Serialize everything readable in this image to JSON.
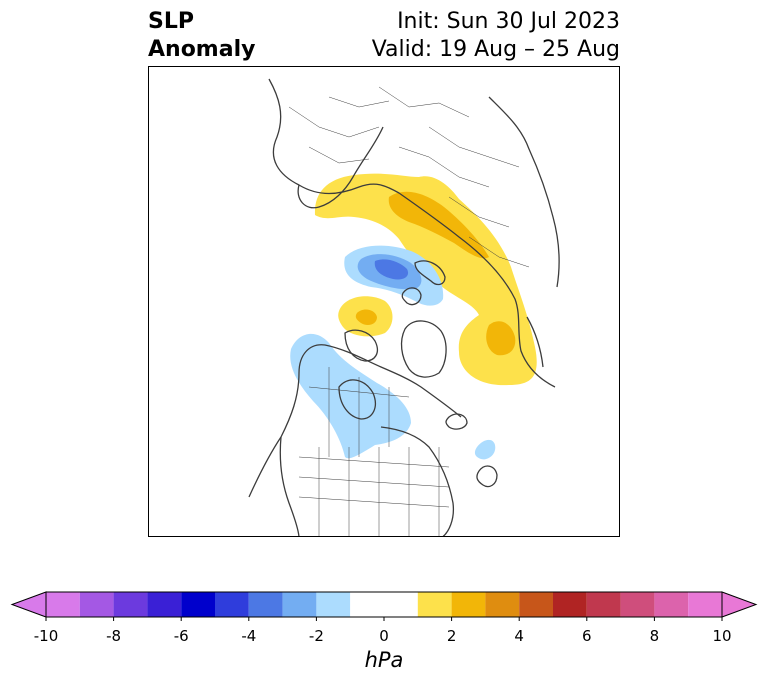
{
  "title": {
    "variable_line1": "SLP",
    "variable_line2": "Anomaly",
    "init": "Init: Sun 30 Jul 2023",
    "valid": "Valid: 19 Aug – 25 Aug"
  },
  "colors": {
    "coast": "#3c3c3c",
    "positive_1": "#fde14b",
    "positive_2": "#f2b608",
    "negative_1": "#acdcfe",
    "negative_2": "#73adf2",
    "negative_3": "#4c78e4"
  },
  "colorbar": {
    "unit": "hPa",
    "ticks": [
      "-10",
      "-8",
      "-6",
      "-4",
      "-2",
      "0",
      "2",
      "4",
      "6",
      "8",
      "10"
    ],
    "bins": [
      {
        "from": -10,
        "to": -9,
        "color": "#d87aea"
      },
      {
        "from": -9,
        "to": -8,
        "color": "#a458e4"
      },
      {
        "from": -8,
        "to": -7,
        "color": "#6c3ade"
      },
      {
        "from": -7,
        "to": -6,
        "color": "#3a20d6"
      },
      {
        "from": -6,
        "to": -5,
        "color": "#0000cc"
      },
      {
        "from": -5,
        "to": -4,
        "color": "#2f3ddc"
      },
      {
        "from": -4,
        "to": -3,
        "color": "#4c78e4"
      },
      {
        "from": -3,
        "to": -2,
        "color": "#73adf2"
      },
      {
        "from": -2,
        "to": -1,
        "color": "#acdcfe"
      },
      {
        "from": -1,
        "to": 1,
        "color": "#ffffff"
      },
      {
        "from": 1,
        "to": 2,
        "color": "#fde14b"
      },
      {
        "from": 2,
        "to": 3,
        "color": "#f2b608"
      },
      {
        "from": 3,
        "to": 4,
        "color": "#df8d10"
      },
      {
        "from": 4,
        "to": 5,
        "color": "#c7561a"
      },
      {
        "from": 5,
        "to": 6,
        "color": "#b02423"
      },
      {
        "from": 6,
        "to": 7,
        "color": "#c0384e"
      },
      {
        "from": 7,
        "to": 8,
        "color": "#cf4e7c"
      },
      {
        "from": 8,
        "to": 9,
        "color": "#dc63ac"
      },
      {
        "from": 9,
        "to": 10,
        "color": "#e878d6"
      }
    ],
    "extend_low_color": "#d87aea",
    "extend_high_color": "#e878d6"
  }
}
